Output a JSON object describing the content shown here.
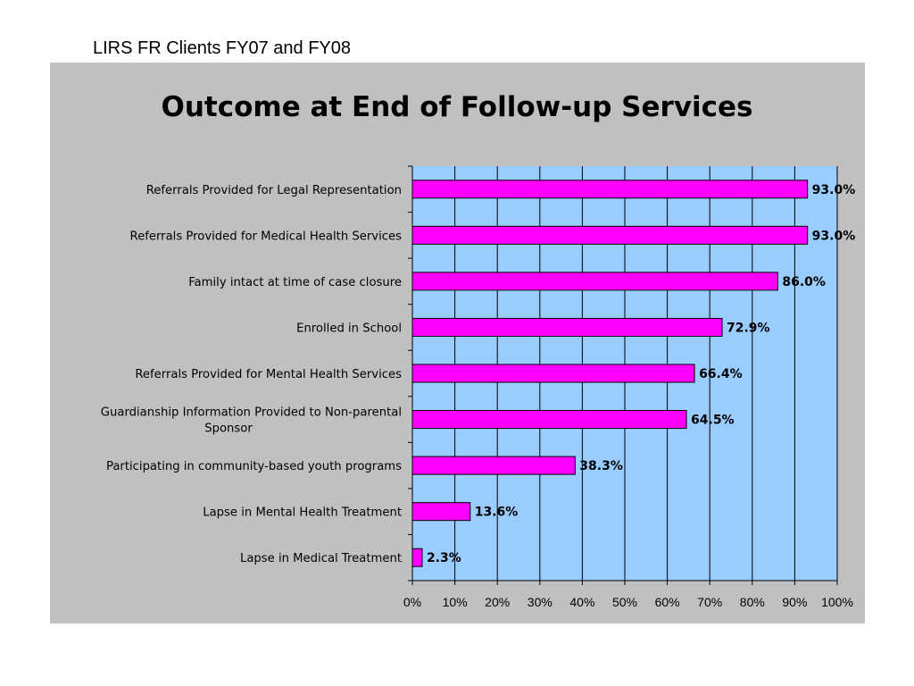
{
  "slide_title": "LIRS FR Clients FY07 and FY08",
  "colors": {
    "panel_background": "#c0c0c0",
    "plot_background": "#99ccff",
    "bar_fill": "#ff00ff",
    "bar_stroke": "#000000"
  },
  "chart_data": {
    "type": "bar",
    "orientation": "horizontal",
    "title": "Outcome at End of Follow-up Services",
    "xlabel": "",
    "ylabel": "",
    "categories": [
      "Referrals Provided for Legal Representation",
      "Referrals Provided for Medical Health Services",
      "Family intact at time of case closure",
      "Enrolled in School",
      "Referrals Provided for Mental Health Services",
      "Guardianship Information Provided to Non-parental Sponsor",
      "Participating in community-based youth programs",
      "Lapse in Mental Health Treatment",
      "Lapse in Medical Treatment"
    ],
    "category_lines": [
      [
        "Referrals Provided for Legal Representation"
      ],
      [
        "Referrals Provided for Medical Health Services"
      ],
      [
        "Family intact at time of case closure"
      ],
      [
        "Enrolled in School"
      ],
      [
        "Referrals Provided for Mental Health Services"
      ],
      [
        "Guardianship Information Provided to Non-parental",
        "Sponsor"
      ],
      [
        "Participating in community-based youth programs"
      ],
      [
        "Lapse in Mental Health Treatment"
      ],
      [
        "Lapse in Medical Treatment"
      ]
    ],
    "values": [
      93.0,
      93.0,
      86.0,
      72.9,
      66.4,
      64.5,
      38.3,
      13.6,
      2.3
    ],
    "data_labels": [
      "93.0%",
      "93.0%",
      "86.0%",
      "72.9%",
      "66.4%",
      "64.5%",
      "38.3%",
      "13.6%",
      "2.3%"
    ],
    "xlim": [
      0,
      100
    ],
    "xticks": [
      0,
      10,
      20,
      30,
      40,
      50,
      60,
      70,
      80,
      90,
      100
    ],
    "xtick_labels": [
      "0%",
      "10%",
      "20%",
      "30%",
      "40%",
      "50%",
      "60%",
      "70%",
      "80%",
      "90%",
      "100%"
    ],
    "grid": "vertical",
    "legend": "none"
  }
}
